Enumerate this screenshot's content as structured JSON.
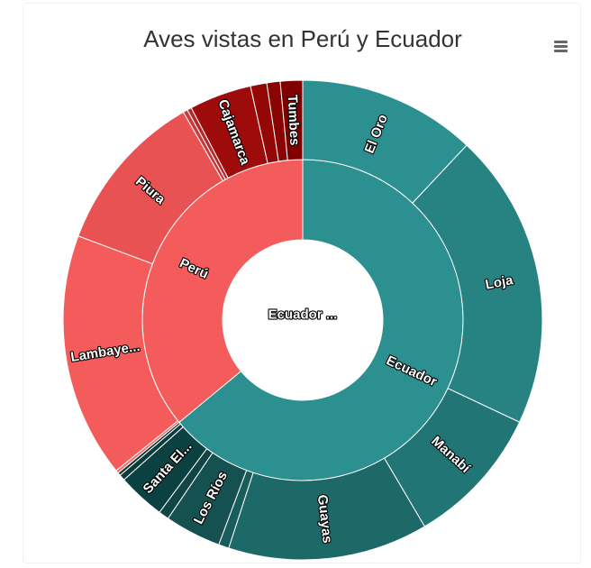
{
  "chart_data": {
    "type": "sunburst",
    "title": "Aves vistas en Perú y Ecuador",
    "root": {
      "name": "Ecuador ...",
      "color": "#ffffff"
    },
    "groups": [
      {
        "name": "Ecuador",
        "label": "Ecuador",
        "value": 64,
        "color": "#2b908f",
        "children": [
          {
            "name": "El Oro",
            "label": "El Oro",
            "value": 12.0,
            "color": "#2b908f"
          },
          {
            "name": "Loja",
            "label": "Loja",
            "value": 20.0,
            "color": "#268382"
          },
          {
            "name": "Manabí",
            "label": "Manabí",
            "value": 9.5,
            "color": "#217675"
          },
          {
            "name": "Guayas",
            "label": "Guayas",
            "value": 13.5,
            "color": "#1c6968"
          },
          {
            "name": "Ecuador (small 1)",
            "label": "",
            "value": 0.7,
            "color": "#185d5c"
          },
          {
            "name": "Los Ríos",
            "label": "Los Ríos",
            "value": 3.8,
            "color": "#145150"
          },
          {
            "name": "Ecuador (small 2)",
            "label": "",
            "value": 0.7,
            "color": "#104544"
          },
          {
            "name": "Santa El...",
            "label": "Santa El...",
            "value": 3.2,
            "color": "#0b4140"
          },
          {
            "name": "Ecuador (small 3)",
            "label": "",
            "value": 0.4,
            "color": "#0a3c3b"
          },
          {
            "name": "Ecuador (small 4)",
            "label": "",
            "value": 0.2,
            "color": "#093534"
          }
        ]
      },
      {
        "name": "Perú",
        "label": "Perú",
        "value": 36,
        "color": "#f45b5b",
        "children": [
          {
            "name": "Perú (small 1)",
            "label": "",
            "value": 0.2,
            "color": "#f36a6a"
          },
          {
            "name": "Lambaye...",
            "label": "Lambaye...",
            "value": 16.5,
            "color": "#f45b5b"
          },
          {
            "name": "Piura",
            "label": "Piura",
            "value": 11.0,
            "color": "#e85252"
          },
          {
            "name": "Perú (small 2)",
            "label": "",
            "value": 0.3,
            "color": "#c93a3a"
          },
          {
            "name": "Perú (small 3)",
            "label": "",
            "value": 0.3,
            "color": "#b52a2a"
          },
          {
            "name": "Cajamarca",
            "label": "Cajamarca",
            "value": 4.2,
            "color": "#9e0b0b"
          },
          {
            "name": "Perú (small 4)",
            "label": "",
            "value": 1.1,
            "color": "#940707"
          },
          {
            "name": "Perú (small 5)",
            "label": "",
            "value": 0.9,
            "color": "#8a0404"
          },
          {
            "name": "Tumbes",
            "label": "Tumbes",
            "value": 1.5,
            "color": "#800000"
          }
        ]
      }
    ]
  }
}
